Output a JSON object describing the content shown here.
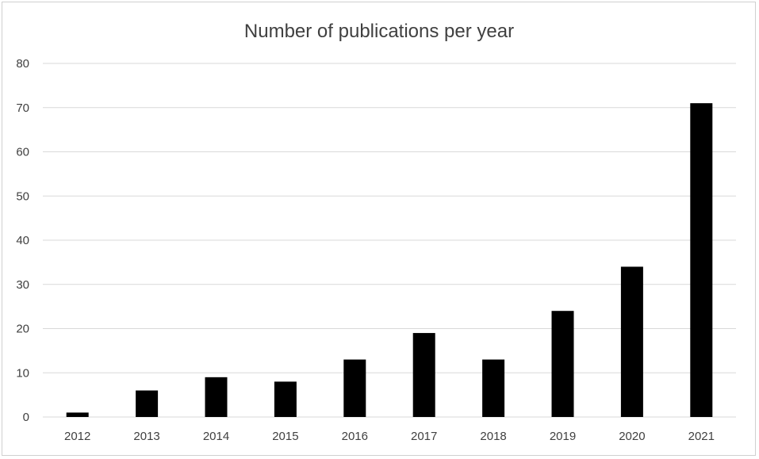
{
  "chart_data": {
    "type": "bar",
    "title": "Number of publications per year",
    "xlabel": "",
    "ylabel": "",
    "categories": [
      "2012",
      "2013",
      "2014",
      "2015",
      "2016",
      "2017",
      "2018",
      "2019",
      "2020",
      "2021"
    ],
    "values": [
      1,
      6,
      9,
      8,
      13,
      19,
      13,
      24,
      34,
      71
    ],
    "ylim": [
      0,
      80
    ],
    "yticks": [
      "0",
      "10",
      "20",
      "30",
      "40",
      "50",
      "60",
      "70",
      "80"
    ],
    "grid": true,
    "legend": "none",
    "bar_color": "#000000",
    "gridline_color": "#d9d9d9"
  }
}
